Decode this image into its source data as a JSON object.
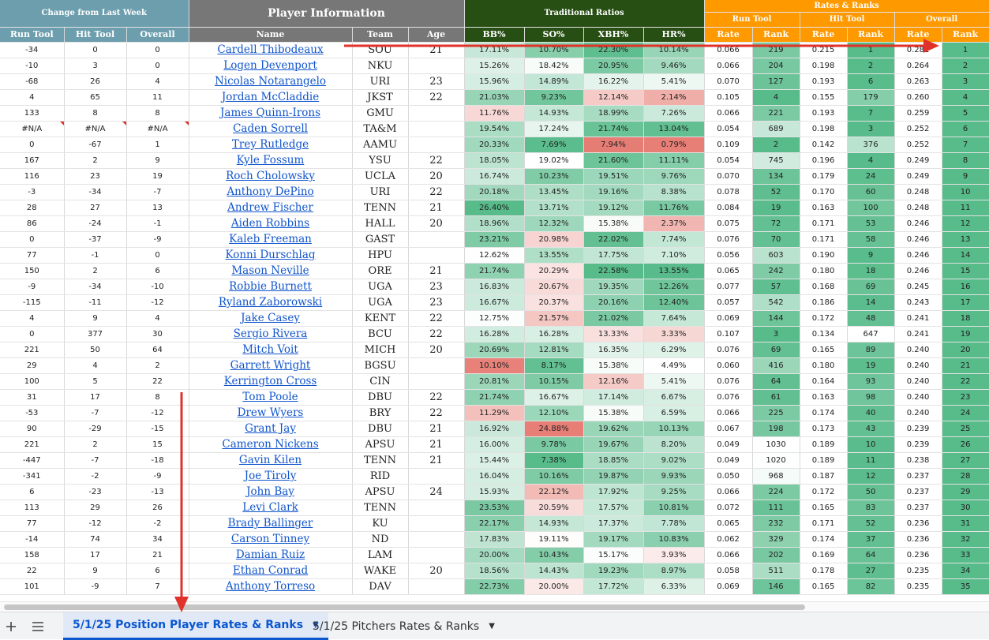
{
  "headers": {
    "change_title": "Change from Last Week",
    "player_info_title": "Player Information",
    "trad_title": "Traditional Ratios",
    "rates_ranks_title": "Rates & Ranks",
    "run_tool_group": "Run Tool",
    "hit_tool_group": "Hit Tool",
    "overall_group": "Overall",
    "col_run_tool": "Run Tool",
    "col_hit_tool": "Hit Tool",
    "col_overall": "Overall",
    "col_name": "Name",
    "col_team": "Team",
    "col_age": "Age",
    "col_bb": "BB%",
    "col_so": "SO%",
    "col_xbh": "XBH%",
    "col_hr": "HR%",
    "col_rate": "Rate",
    "col_rank": "Rank"
  },
  "colors": {
    "header_blue": "#6d9eae",
    "header_gray": "#777777",
    "header_green": "#274e13",
    "header_orange": "#ff9900",
    "rank_green": "#57bb8a",
    "red_annotation": "#e0322a",
    "link_blue": "#1155cc"
  },
  "rows": [
    {
      "run": "-34",
      "hit": "0",
      "ovr": "0",
      "name": "Cardell Thibodeaux",
      "team": "SOU",
      "age": "21",
      "bb": "17.11%",
      "so": "10.70%",
      "xbh": "22.30%",
      "hr": "10.14%",
      "rr": "0.066",
      "rk": "219",
      "hr_rate": "0.215",
      "hk": "1",
      "or": "0.281",
      "ok": "1"
    },
    {
      "run": "-10",
      "hit": "3",
      "ovr": "0",
      "name": "Logen Devenport",
      "team": "NKU",
      "age": "",
      "bb": "15.26%",
      "so": "18.42%",
      "xbh": "20.95%",
      "hr": "9.46%",
      "rr": "0.066",
      "rk": "204",
      "hr_rate": "0.198",
      "hk": "2",
      "or": "0.264",
      "ok": "2"
    },
    {
      "run": "-68",
      "hit": "26",
      "ovr": "4",
      "name": "Nicolas Notarangelo",
      "team": "URI",
      "age": "23",
      "bb": "15.96%",
      "so": "14.89%",
      "xbh": "16.22%",
      "hr": "5.41%",
      "rr": "0.070",
      "rk": "127",
      "hr_rate": "0.193",
      "hk": "6",
      "or": "0.263",
      "ok": "3"
    },
    {
      "run": "4",
      "hit": "65",
      "ovr": "11",
      "name": "Jordan McCladdie",
      "team": "JKST",
      "age": "22",
      "bb": "21.03%",
      "so": "9.23%",
      "xbh": "12.14%",
      "hr": "2.14%",
      "rr": "0.105",
      "rk": "4",
      "hr_rate": "0.155",
      "hk": "179",
      "or": "0.260",
      "ok": "4"
    },
    {
      "run": "133",
      "hit": "8",
      "ovr": "8",
      "name": "James Quinn-Irons",
      "team": "GMU",
      "age": "",
      "bb": "11.76%",
      "so": "14.93%",
      "xbh": "18.99%",
      "hr": "7.26%",
      "rr": "0.066",
      "rk": "221",
      "hr_rate": "0.193",
      "hk": "7",
      "or": "0.259",
      "ok": "5"
    },
    {
      "run": "#N/A",
      "hit": "#N/A",
      "ovr": "#N/A",
      "name": "Caden Sorrell",
      "team": "TA&M",
      "age": "",
      "bb": "19.54%",
      "so": "17.24%",
      "xbh": "21.74%",
      "hr": "13.04%",
      "rr": "0.054",
      "rk": "689",
      "hr_rate": "0.198",
      "hk": "3",
      "or": "0.252",
      "ok": "6"
    },
    {
      "run": "0",
      "hit": "-67",
      "ovr": "1",
      "name": "Trey Rutledge",
      "team": "AAMU",
      "age": "",
      "bb": "20.33%",
      "so": "7.69%",
      "xbh": "7.94%",
      "hr": "0.79%",
      "rr": "0.109",
      "rk": "2",
      "hr_rate": "0.142",
      "hk": "376",
      "or": "0.252",
      "ok": "7"
    },
    {
      "run": "167",
      "hit": "2",
      "ovr": "9",
      "name": "Kyle Fossum",
      "team": "YSU",
      "age": "22",
      "bb": "18.05%",
      "so": "19.02%",
      "xbh": "21.60%",
      "hr": "11.11%",
      "rr": "0.054",
      "rk": "745",
      "hr_rate": "0.196",
      "hk": "4",
      "or": "0.249",
      "ok": "8"
    },
    {
      "run": "116",
      "hit": "23",
      "ovr": "19",
      "name": "Roch Cholowsky",
      "team": "UCLA",
      "age": "20",
      "bb": "16.74%",
      "so": "10.23%",
      "xbh": "19.51%",
      "hr": "9.76%",
      "rr": "0.070",
      "rk": "134",
      "hr_rate": "0.179",
      "hk": "24",
      "or": "0.249",
      "ok": "9"
    },
    {
      "run": "-3",
      "hit": "-34",
      "ovr": "-7",
      "name": "Anthony DePino",
      "team": "URI",
      "age": "22",
      "bb": "20.18%",
      "so": "13.45%",
      "xbh": "19.16%",
      "hr": "8.38%",
      "rr": "0.078",
      "rk": "52",
      "hr_rate": "0.170",
      "hk": "60",
      "or": "0.248",
      "ok": "10"
    },
    {
      "run": "28",
      "hit": "27",
      "ovr": "13",
      "name": "Andrew Fischer",
      "team": "TENN",
      "age": "21",
      "bb": "26.40%",
      "so": "13.71%",
      "xbh": "19.12%",
      "hr": "11.76%",
      "rr": "0.084",
      "rk": "19",
      "hr_rate": "0.163",
      "hk": "100",
      "or": "0.248",
      "ok": "11"
    },
    {
      "run": "86",
      "hit": "-24",
      "ovr": "-1",
      "name": "Aiden Robbins",
      "team": "HALL",
      "age": "20",
      "bb": "18.96%",
      "so": "12.32%",
      "xbh": "15.38%",
      "hr": "2.37%",
      "rr": "0.075",
      "rk": "72",
      "hr_rate": "0.171",
      "hk": "53",
      "or": "0.246",
      "ok": "12"
    },
    {
      "run": "0",
      "hit": "-37",
      "ovr": "-9",
      "name": "Kaleb Freeman",
      "team": "GAST",
      "age": "",
      "bb": "23.21%",
      "so": "20.98%",
      "xbh": "22.02%",
      "hr": "7.74%",
      "rr": "0.076",
      "rk": "70",
      "hr_rate": "0.171",
      "hk": "58",
      "or": "0.246",
      "ok": "13"
    },
    {
      "run": "77",
      "hit": "-1",
      "ovr": "0",
      "name": "Konni Durschlag",
      "team": "HPU",
      "age": "",
      "bb": "12.62%",
      "so": "13.55%",
      "xbh": "17.75%",
      "hr": "7.10%",
      "rr": "0.056",
      "rk": "603",
      "hr_rate": "0.190",
      "hk": "9",
      "or": "0.246",
      "ok": "14"
    },
    {
      "run": "150",
      "hit": "2",
      "ovr": "6",
      "name": "Mason Neville",
      "team": "ORE",
      "age": "21",
      "bb": "21.74%",
      "so": "20.29%",
      "xbh": "22.58%",
      "hr": "13.55%",
      "rr": "0.065",
      "rk": "242",
      "hr_rate": "0.180",
      "hk": "18",
      "or": "0.246",
      "ok": "15"
    },
    {
      "run": "-9",
      "hit": "-34",
      "ovr": "-10",
      "name": "Robbie Burnett",
      "team": "UGA",
      "age": "23",
      "bb": "16.83%",
      "so": "20.67%",
      "xbh": "19.35%",
      "hr": "12.26%",
      "rr": "0.077",
      "rk": "57",
      "hr_rate": "0.168",
      "hk": "69",
      "or": "0.245",
      "ok": "16"
    },
    {
      "run": "-115",
      "hit": "-11",
      "ovr": "-12",
      "name": "Ryland Zaborowski",
      "team": "UGA",
      "age": "23",
      "bb": "16.67%",
      "so": "20.37%",
      "xbh": "20.16%",
      "hr": "12.40%",
      "rr": "0.057",
      "rk": "542",
      "hr_rate": "0.186",
      "hk": "14",
      "or": "0.243",
      "ok": "17"
    },
    {
      "run": "4",
      "hit": "9",
      "ovr": "4",
      "name": "Jake Casey",
      "team": "KENT",
      "age": "22",
      "bb": "12.75%",
      "so": "21.57%",
      "xbh": "21.02%",
      "hr": "7.64%",
      "rr": "0.069",
      "rk": "144",
      "hr_rate": "0.172",
      "hk": "48",
      "or": "0.241",
      "ok": "18"
    },
    {
      "run": "0",
      "hit": "377",
      "ovr": "30",
      "name": "Sergio Rivera",
      "team": "BCU",
      "age": "22",
      "bb": "16.28%",
      "so": "16.28%",
      "xbh": "13.33%",
      "hr": "3.33%",
      "rr": "0.107",
      "rk": "3",
      "hr_rate": "0.134",
      "hk": "647",
      "or": "0.241",
      "ok": "19"
    },
    {
      "run": "221",
      "hit": "50",
      "ovr": "64",
      "name": "Mitch Voit",
      "team": "MICH",
      "age": "20",
      "bb": "20.69%",
      "so": "12.81%",
      "xbh": "16.35%",
      "hr": "6.29%",
      "rr": "0.076",
      "rk": "69",
      "hr_rate": "0.165",
      "hk": "89",
      "or": "0.240",
      "ok": "20"
    },
    {
      "run": "29",
      "hit": "4",
      "ovr": "2",
      "name": "Garrett Wright",
      "team": "BGSU",
      "age": "",
      "bb": "10.10%",
      "so": "8.17%",
      "xbh": "15.38%",
      "hr": "4.49%",
      "rr": "0.060",
      "rk": "416",
      "hr_rate": "0.180",
      "hk": "19",
      "or": "0.240",
      "ok": "21"
    },
    {
      "run": "100",
      "hit": "5",
      "ovr": "22",
      "name": "Kerrington Cross",
      "team": "CIN",
      "age": "",
      "bb": "20.81%",
      "so": "10.15%",
      "xbh": "12.16%",
      "hr": "5.41%",
      "rr": "0.076",
      "rk": "64",
      "hr_rate": "0.164",
      "hk": "93",
      "or": "0.240",
      "ok": "22"
    },
    {
      "run": "31",
      "hit": "17",
      "ovr": "8",
      "name": "Tom Poole",
      "team": "DBU",
      "age": "22",
      "bb": "21.74%",
      "so": "16.67%",
      "xbh": "17.14%",
      "hr": "6.67%",
      "rr": "0.076",
      "rk": "61",
      "hr_rate": "0.163",
      "hk": "98",
      "or": "0.240",
      "ok": "23"
    },
    {
      "run": "-53",
      "hit": "-7",
      "ovr": "-12",
      "name": "Drew Wyers",
      "team": "BRY",
      "age": "22",
      "bb": "11.29%",
      "so": "12.10%",
      "xbh": "15.38%",
      "hr": "6.59%",
      "rr": "0.066",
      "rk": "225",
      "hr_rate": "0.174",
      "hk": "40",
      "or": "0.240",
      "ok": "24"
    },
    {
      "run": "90",
      "hit": "-29",
      "ovr": "-15",
      "name": "Grant Jay",
      "team": "DBU",
      "age": "21",
      "bb": "16.92%",
      "so": "24.88%",
      "xbh": "19.62%",
      "hr": "10.13%",
      "rr": "0.067",
      "rk": "198",
      "hr_rate": "0.173",
      "hk": "43",
      "or": "0.239",
      "ok": "25"
    },
    {
      "run": "221",
      "hit": "2",
      "ovr": "15",
      "name": "Cameron Nickens",
      "team": "APSU",
      "age": "21",
      "bb": "16.00%",
      "so": "9.78%",
      "xbh": "19.67%",
      "hr": "8.20%",
      "rr": "0.049",
      "rk": "1030",
      "hr_rate": "0.189",
      "hk": "10",
      "or": "0.239",
      "ok": "26"
    },
    {
      "run": "-447",
      "hit": "-7",
      "ovr": "-18",
      "name": "Gavin Kilen",
      "team": "TENN",
      "age": "21",
      "bb": "15.44%",
      "so": "7.38%",
      "xbh": "18.85%",
      "hr": "9.02%",
      "rr": "0.049",
      "rk": "1020",
      "hr_rate": "0.189",
      "hk": "11",
      "or": "0.238",
      "ok": "27"
    },
    {
      "run": "-341",
      "hit": "-2",
      "ovr": "-9",
      "name": "Joe Tiroly",
      "team": "RID",
      "age": "",
      "bb": "16.04%",
      "so": "10.16%",
      "xbh": "19.87%",
      "hr": "9.93%",
      "rr": "0.050",
      "rk": "968",
      "hr_rate": "0.187",
      "hk": "12",
      "or": "0.237",
      "ok": "28"
    },
    {
      "run": "6",
      "hit": "-23",
      "ovr": "-13",
      "name": "John Bay",
      "team": "APSU",
      "age": "24",
      "bb": "15.93%",
      "so": "22.12%",
      "xbh": "17.92%",
      "hr": "9.25%",
      "rr": "0.066",
      "rk": "224",
      "hr_rate": "0.172",
      "hk": "50",
      "or": "0.237",
      "ok": "29"
    },
    {
      "run": "113",
      "hit": "29",
      "ovr": "26",
      "name": "Levi Clark",
      "team": "TENN",
      "age": "",
      "bb": "23.53%",
      "so": "20.59%",
      "xbh": "17.57%",
      "hr": "10.81%",
      "rr": "0.072",
      "rk": "111",
      "hr_rate": "0.165",
      "hk": "83",
      "or": "0.237",
      "ok": "30"
    },
    {
      "run": "77",
      "hit": "-12",
      "ovr": "-2",
      "name": "Brady Ballinger",
      "team": "KU",
      "age": "",
      "bb": "22.17%",
      "so": "14.93%",
      "xbh": "17.37%",
      "hr": "7.78%",
      "rr": "0.065",
      "rk": "232",
      "hr_rate": "0.171",
      "hk": "52",
      "or": "0.236",
      "ok": "31"
    },
    {
      "run": "-14",
      "hit": "74",
      "ovr": "34",
      "name": "Carson Tinney",
      "team": "ND",
      "age": "",
      "bb": "17.83%",
      "so": "19.11%",
      "xbh": "19.17%",
      "hr": "10.83%",
      "rr": "0.062",
      "rk": "329",
      "hr_rate": "0.174",
      "hk": "37",
      "or": "0.236",
      "ok": "32"
    },
    {
      "run": "158",
      "hit": "17",
      "ovr": "21",
      "name": "Damian Ruiz",
      "team": "LAM",
      "age": "",
      "bb": "20.00%",
      "so": "10.43%",
      "xbh": "15.17%",
      "hr": "3.93%",
      "rr": "0.066",
      "rk": "202",
      "hr_rate": "0.169",
      "hk": "64",
      "or": "0.236",
      "ok": "33"
    },
    {
      "run": "22",
      "hit": "9",
      "ovr": "6",
      "name": "Ethan Conrad",
      "team": "WAKE",
      "age": "20",
      "bb": "18.56%",
      "so": "14.43%",
      "xbh": "19.23%",
      "hr": "8.97%",
      "rr": "0.058",
      "rk": "511",
      "hr_rate": "0.178",
      "hk": "27",
      "or": "0.235",
      "ok": "34"
    },
    {
      "run": "101",
      "hit": "-9",
      "ovr": "7",
      "name": "Anthony Torreso",
      "team": "DAV",
      "age": "",
      "bb": "22.73%",
      "so": "20.00%",
      "xbh": "17.72%",
      "hr": "6.33%",
      "rr": "0.069",
      "rk": "146",
      "hr_rate": "0.165",
      "hk": "82",
      "or": "0.235",
      "ok": "35"
    }
  ],
  "bottom_bar": {
    "add_icon": "plus-icon",
    "menu_icon": "hamburger-icon",
    "tab1": "5/1/25 Position Player Rates & Ranks",
    "tab2": "5/1/25 Pitchers Rates & Ranks"
  }
}
